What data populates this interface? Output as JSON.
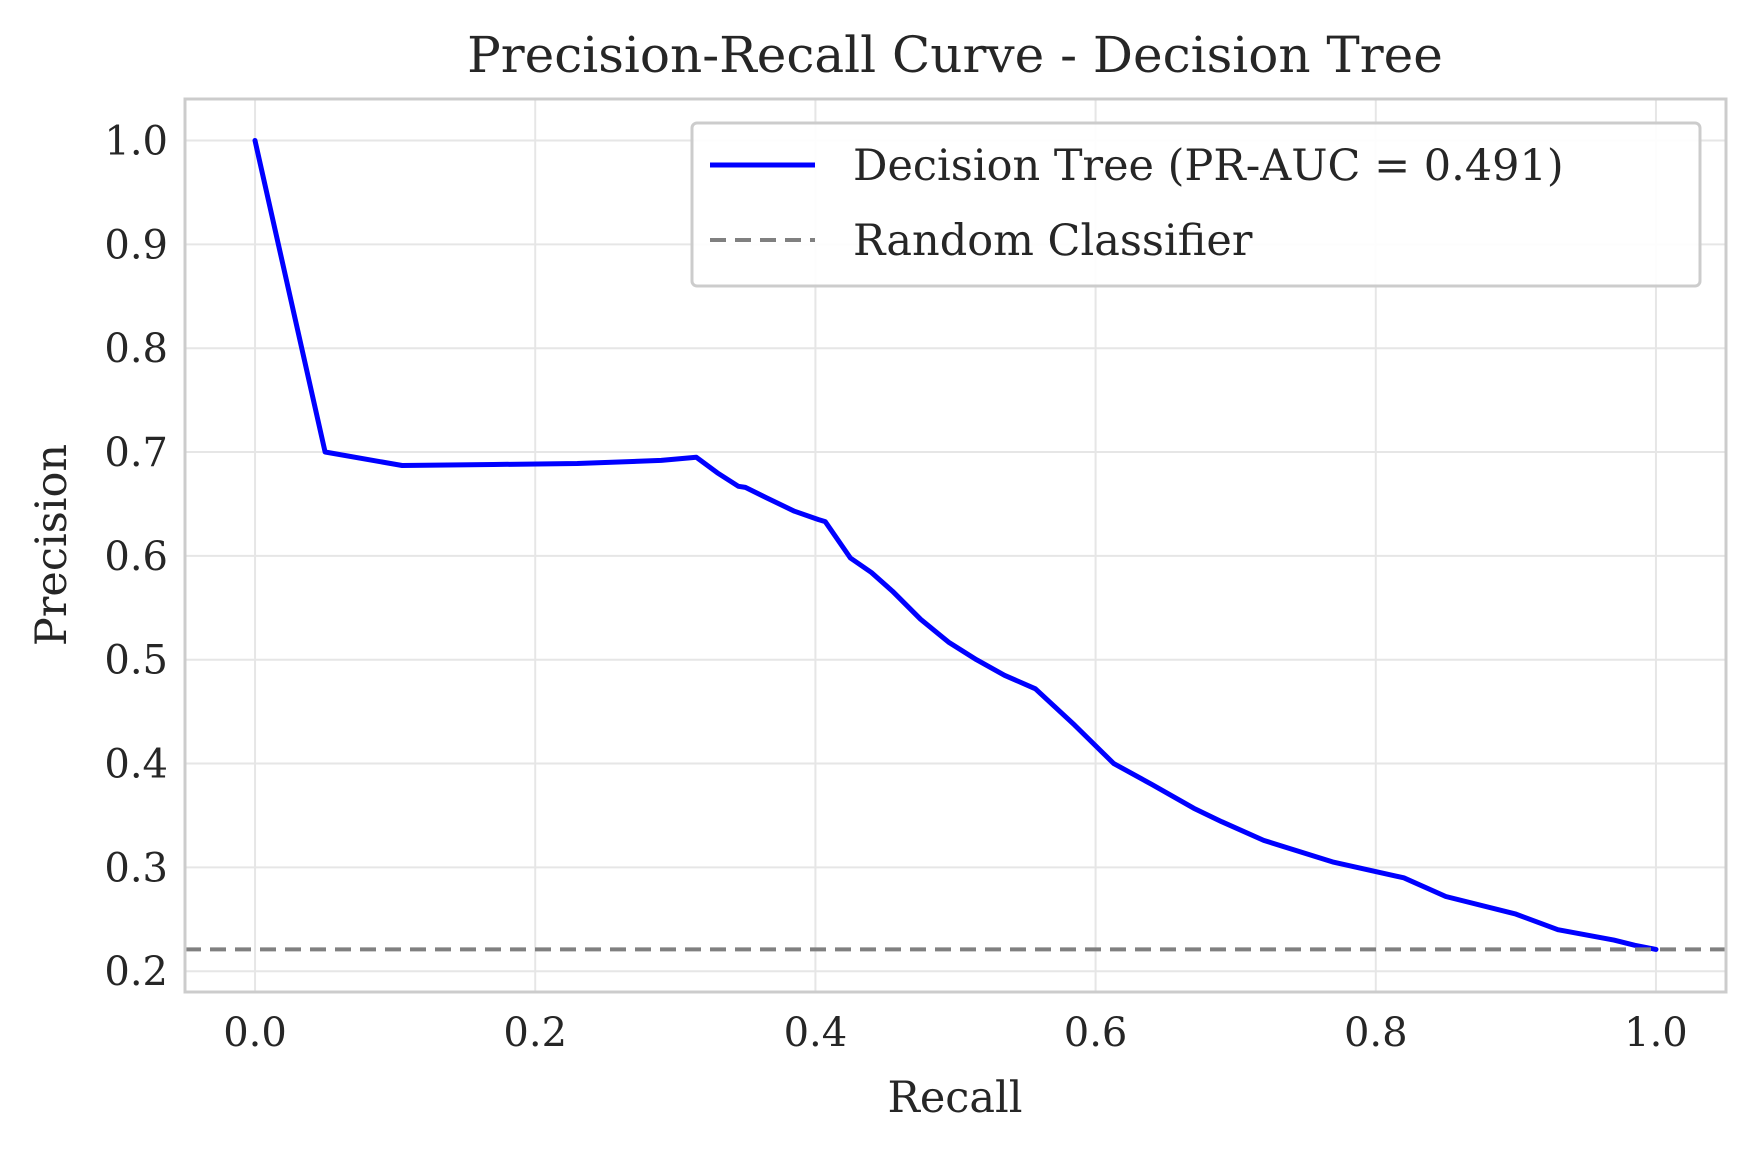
{
  "chart_data": {
    "type": "line",
    "title": "Precision-Recall Curve - Decision Tree",
    "xlabel": "Recall",
    "ylabel": "Precision",
    "xlim": [
      -0.05,
      1.05
    ],
    "ylim": [
      0.18,
      1.04
    ],
    "xticks": [
      "0.0",
      "0.2",
      "0.4",
      "0.6",
      "0.8",
      "1.0"
    ],
    "yticks": [
      "0.2",
      "0.3",
      "0.4",
      "0.5",
      "0.6",
      "0.7",
      "0.8",
      "0.9",
      "1.0"
    ],
    "grid": true,
    "legend_position": "top-right",
    "series": [
      {
        "name": "Decision Tree (PR-AUC = 0.491)",
        "color": "#0000ff",
        "style": "solid",
        "x": [
          0.0,
          0.05,
          0.105,
          0.17,
          0.23,
          0.29,
          0.315,
          0.33,
          0.345,
          0.35,
          0.365,
          0.385,
          0.402,
          0.407,
          0.425,
          0.44,
          0.455,
          0.475,
          0.495,
          0.515,
          0.535,
          0.557,
          0.585,
          0.613,
          0.64,
          0.67,
          0.69,
          0.72,
          0.77,
          0.82,
          0.85,
          0.9,
          0.93,
          0.97,
          0.985,
          1.0
        ],
        "y": [
          1.0,
          0.7,
          0.687,
          0.688,
          0.689,
          0.692,
          0.695,
          0.68,
          0.667,
          0.666,
          0.656,
          0.643,
          0.635,
          0.633,
          0.598,
          0.584,
          0.566,
          0.539,
          0.517,
          0.5,
          0.485,
          0.472,
          0.437,
          0.4,
          0.38,
          0.357,
          0.344,
          0.326,
          0.305,
          0.29,
          0.272,
          0.255,
          0.24,
          0.23,
          0.225,
          0.221
        ]
      },
      {
        "name": "Random Classifier",
        "color": "#808080",
        "style": "dashed",
        "y_constant": 0.221
      }
    ]
  }
}
